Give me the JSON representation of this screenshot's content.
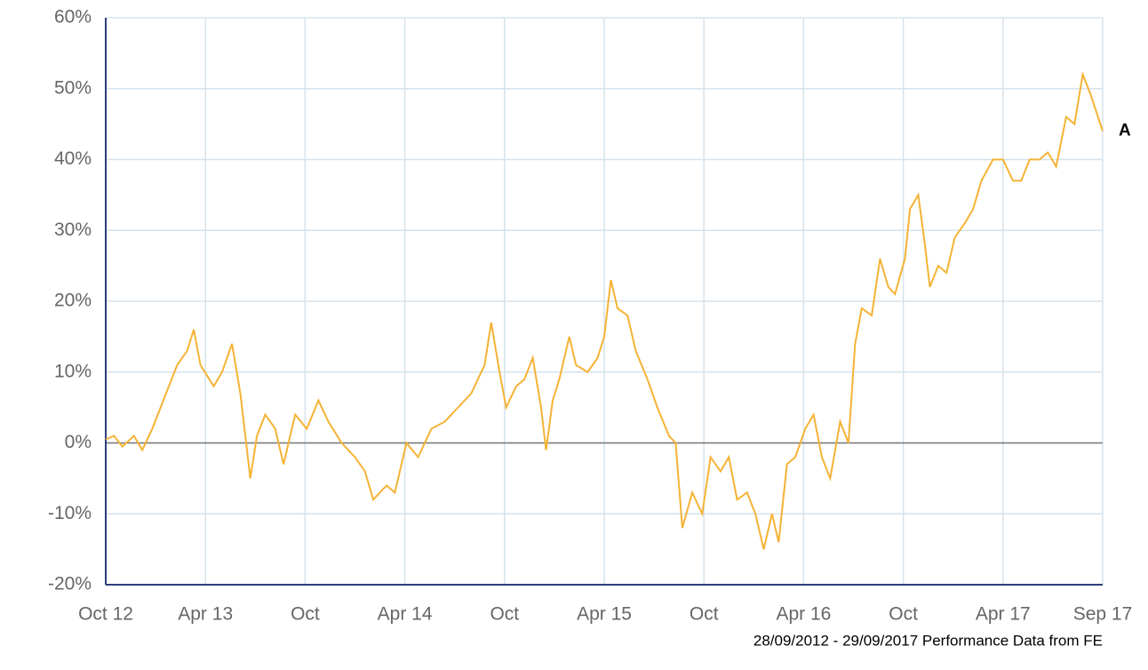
{
  "chart_data": {
    "type": "line",
    "x": [
      0,
      0.5,
      1,
      1.7,
      2.2,
      2.8,
      3.3,
      4.3,
      4.9,
      5.3,
      5.7,
      6.5,
      7,
      7.6,
      8.1,
      8.7,
      9.1,
      9.6,
      10.2,
      10.7,
      11.4,
      12.1,
      12.8,
      13.4,
      14.2,
      15,
      15.6,
      16.1,
      16.9,
      17.4,
      18.1,
      18.8,
      19.6,
      20.4,
      21.2,
      22,
      22.8,
      23.2,
      23.7,
      24.1,
      24.7,
      25.2,
      25.7,
      26.2,
      26.5,
      26.9,
      27.3,
      27.9,
      28.3,
      29,
      29.6,
      30,
      30.4,
      30.8,
      31.4,
      31.9,
      32.6,
      33.2,
      33.9,
      34.3,
      34.7,
      35.3,
      35.9,
      36.4,
      37,
      37.5,
      38,
      38.6,
      39.1,
      39.6,
      40.1,
      40.5,
      41,
      41.5,
      42.1,
      42.6,
      43.1,
      43.6,
      44.2,
      44.7,
      45.1,
      45.5,
      46.1,
      46.6,
      47.1,
      47.5,
      48.1,
      48.4,
      48.9,
      49.3,
      49.6,
      50.1,
      50.6,
      51.1,
      51.7,
      52.2,
      52.7,
      53.4,
      54,
      54.6,
      55.1,
      55.6,
      56.2,
      56.7,
      57.2,
      57.8,
      58.3,
      58.8,
      59.3,
      60
    ],
    "series": [
      {
        "name": "A",
        "color": "#f5b335",
        "values": [
          0.5,
          1,
          -0.5,
          1,
          -1,
          2,
          5,
          11,
          13,
          16,
          11,
          8,
          10,
          14,
          7,
          -5,
          1,
          4,
          2,
          -3,
          4,
          2,
          6,
          3,
          0,
          -2,
          -4,
          -8,
          -6,
          -7,
          0,
          -2,
          2,
          3,
          5,
          7,
          11,
          17,
          10,
          5,
          8,
          9,
          12,
          5,
          -1,
          6,
          9,
          15,
          11,
          10,
          12,
          15,
          23,
          19,
          18,
          13,
          9,
          5,
          1,
          0,
          -12,
          -7,
          -10,
          -2,
          -4,
          -2,
          -8,
          -7,
          -10,
          -15,
          -10,
          -14,
          -3,
          -2,
          2,
          4,
          -2,
          -5,
          3,
          0,
          14,
          19,
          18,
          26,
          22,
          21,
          26,
          33,
          35,
          28,
          22,
          25,
          24,
          29,
          31,
          33,
          37,
          40,
          40,
          37,
          37,
          40,
          40,
          41,
          39,
          46,
          45,
          52,
          49,
          44
        ]
      }
    ],
    "xlim": [
      0,
      60
    ],
    "xticks": [
      {
        "value": 0,
        "label": "Oct 12"
      },
      {
        "value": 6,
        "label": "Apr 13"
      },
      {
        "value": 12,
        "label": "Oct"
      },
      {
        "value": 18,
        "label": "Apr 14"
      },
      {
        "value": 24,
        "label": "Oct"
      },
      {
        "value": 30,
        "label": "Apr 15"
      },
      {
        "value": 36,
        "label": "Oct"
      },
      {
        "value": 42,
        "label": "Apr 16"
      },
      {
        "value": 48,
        "label": "Oct"
      },
      {
        "value": 54,
        "label": "Apr 17"
      },
      {
        "value": 60,
        "label": "Sep 17"
      }
    ],
    "ylim": [
      -20,
      60
    ],
    "yticks": [
      {
        "value": -20,
        "label": "-20%"
      },
      {
        "value": -10,
        "label": "-10%"
      },
      {
        "value": 0,
        "label": "0%"
      },
      {
        "value": 10,
        "label": "10%"
      },
      {
        "value": 20,
        "label": "20%"
      },
      {
        "value": 30,
        "label": "30%"
      },
      {
        "value": 40,
        "label": "40%"
      },
      {
        "value": 50,
        "label": "50%"
      },
      {
        "value": 60,
        "label": "60%"
      }
    ],
    "grid": true,
    "footnote": "28/09/2012 - 29/09/2017 Performance Data from FE"
  }
}
